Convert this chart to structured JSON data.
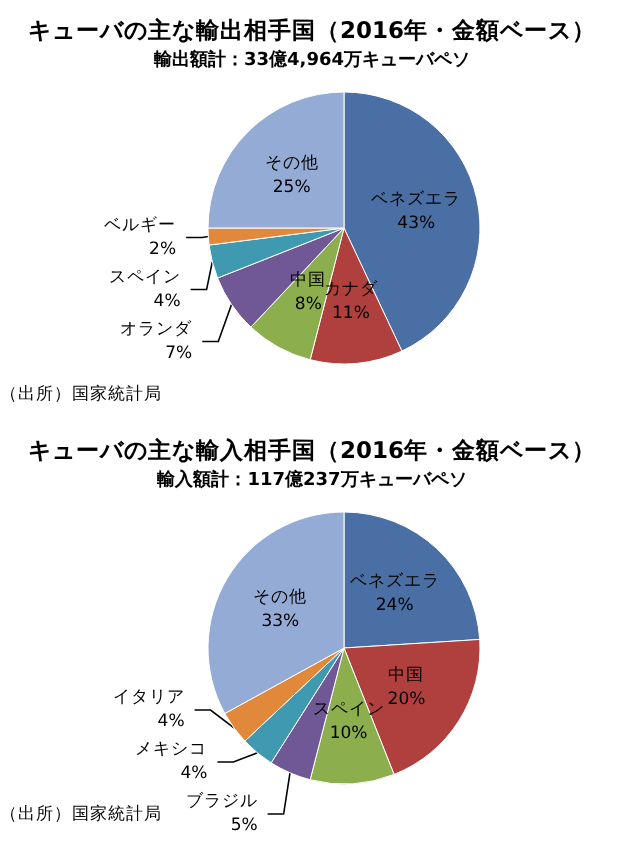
{
  "chart_data": [
    {
      "type": "pie",
      "title": "キューバの主な輸出相手国（2016年・金額ベース）",
      "subtitle": "輸出額計：33億4,964万キューバペソ",
      "categories": [
        "ベネズエラ",
        "カナダ",
        "中国",
        "オランダ",
        "スペイン",
        "ベルギー",
        "その他"
      ],
      "values": [
        43,
        11,
        8,
        7,
        4,
        2,
        25
      ],
      "value_labels": [
        "43%",
        "11%",
        "8%",
        "7%",
        "4%",
        "2%",
        "25%"
      ],
      "colors": [
        "#4a6fa5",
        "#b0403d",
        "#8cae4c",
        "#6f5895",
        "#3f99b0",
        "#e2883a",
        "#94abd6"
      ],
      "annotations": [
        "（出所）国家統計局"
      ]
    },
    {
      "type": "pie",
      "title": "キューバの主な輸入相手国（2016年・金額ベース）",
      "subtitle": "輸入額計：117億237万キューバペソ",
      "categories": [
        "ベネズエラ",
        "中国",
        "スペイン",
        "ブラジル",
        "メキシコ",
        "イタリア",
        "その他"
      ],
      "values": [
        24,
        20,
        10,
        5,
        4,
        4,
        33
      ],
      "value_labels": [
        "24%",
        "20%",
        "10%",
        "5%",
        "4%",
        "4%",
        "33%"
      ],
      "colors": [
        "#4a6fa5",
        "#b0403d",
        "#8cae4c",
        "#6f5895",
        "#3f99b0",
        "#e2883a",
        "#94abd6"
      ],
      "annotations": [
        "（出所）国家統計局"
      ]
    }
  ]
}
